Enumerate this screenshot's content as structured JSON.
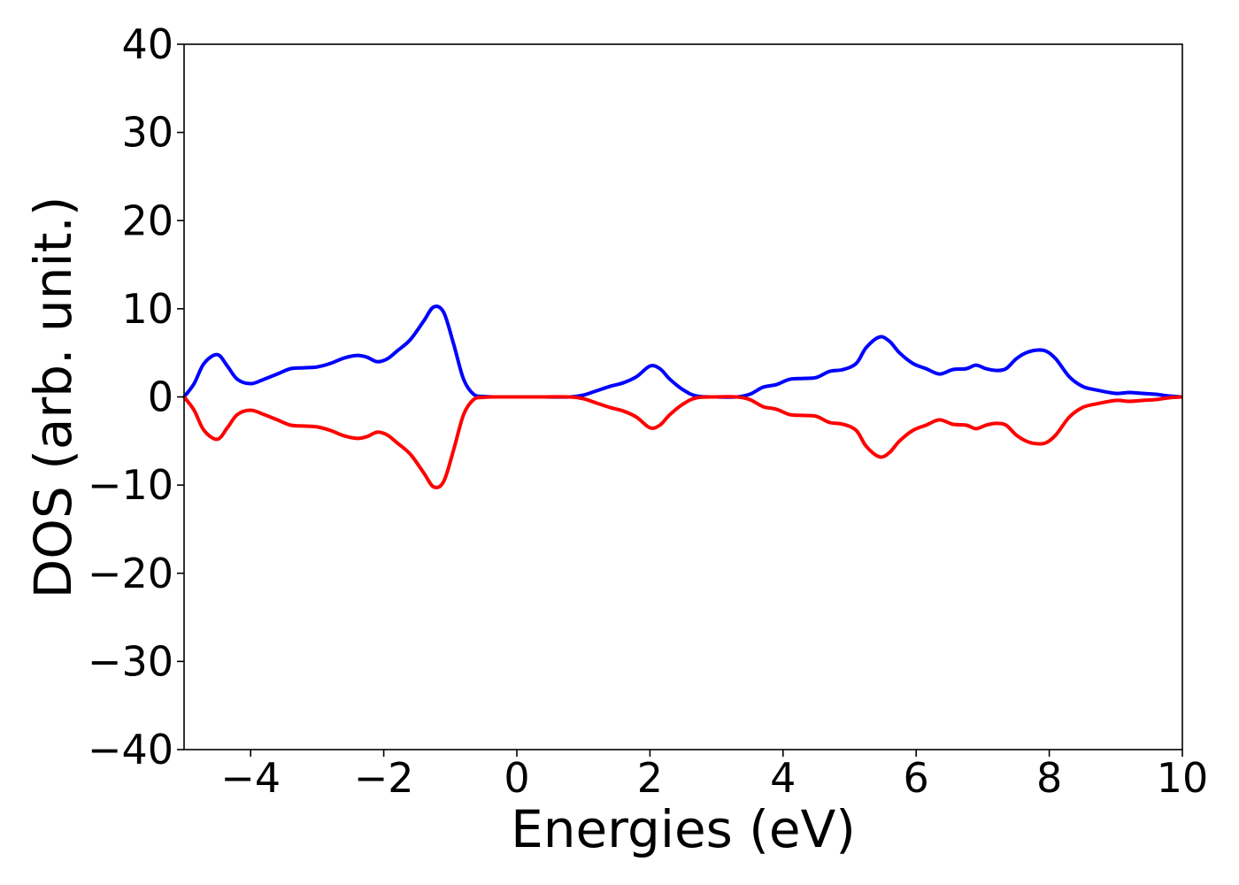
{
  "chart_data": {
    "type": "line",
    "title": "",
    "xlabel": "Energies (eV)",
    "ylabel": "DOS (arb. unit.)",
    "xlim": [
      -5,
      10
    ],
    "ylim": [
      -40,
      40
    ],
    "xticks": [
      -4,
      -2,
      0,
      2,
      4,
      6,
      8,
      10
    ],
    "xtick_labels": [
      "−4",
      "−2",
      "0",
      "2",
      "4",
      "6",
      "8",
      "10"
    ],
    "yticks": [
      -40,
      -30,
      -20,
      -10,
      0,
      10,
      20,
      30,
      40
    ],
    "ytick_labels": [
      "−40",
      "−30",
      "−20",
      "−10",
      "0",
      "10",
      "20",
      "30",
      "40"
    ],
    "grid": false,
    "series": [
      {
        "color": "#0000ff",
        "x": [
          -5.0,
          -4.85,
          -4.7,
          -4.5,
          -4.35,
          -4.2,
          -4.0,
          -3.8,
          -3.6,
          -3.4,
          -3.2,
          -3.0,
          -2.8,
          -2.6,
          -2.4,
          -2.25,
          -2.1,
          -1.95,
          -1.8,
          -1.6,
          -1.4,
          -1.25,
          -1.1,
          -0.95,
          -0.8,
          -0.65,
          -0.5,
          -0.3,
          0.0,
          0.4,
          0.8,
          1.0,
          1.2,
          1.4,
          1.6,
          1.8,
          2.0,
          2.15,
          2.3,
          2.5,
          2.7,
          3.0,
          3.3,
          3.5,
          3.7,
          3.9,
          4.1,
          4.3,
          4.5,
          4.7,
          4.9,
          5.1,
          5.25,
          5.45,
          5.6,
          5.75,
          5.95,
          6.15,
          6.35,
          6.55,
          6.75,
          6.9,
          7.05,
          7.2,
          7.35,
          7.5,
          7.65,
          7.8,
          7.95,
          8.1,
          8.3,
          8.5,
          8.7,
          9.0,
          9.2,
          9.4,
          9.6,
          9.8,
          10.0
        ],
        "values": [
          0.0,
          1.5,
          3.8,
          4.8,
          3.5,
          2.0,
          1.5,
          2.0,
          2.6,
          3.2,
          3.3,
          3.4,
          3.8,
          4.4,
          4.7,
          4.5,
          4.0,
          4.3,
          5.2,
          6.5,
          8.6,
          10.2,
          9.6,
          6.0,
          2.0,
          0.3,
          0.05,
          0.0,
          0.0,
          0.0,
          0.0,
          0.2,
          0.7,
          1.2,
          1.6,
          2.3,
          3.5,
          3.2,
          2.0,
          0.8,
          0.1,
          0.0,
          0.0,
          0.3,
          1.1,
          1.4,
          2.0,
          2.1,
          2.2,
          2.9,
          3.1,
          3.8,
          5.6,
          6.8,
          6.3,
          5.0,
          3.8,
          3.2,
          2.6,
          3.1,
          3.2,
          3.6,
          3.2,
          3.0,
          3.2,
          4.3,
          5.0,
          5.3,
          5.2,
          4.3,
          2.3,
          1.2,
          0.8,
          0.4,
          0.5,
          0.4,
          0.3,
          0.1,
          0.0
        ]
      },
      {
        "color": "#ff0000",
        "x": [
          -5.0,
          -4.85,
          -4.7,
          -4.5,
          -4.35,
          -4.2,
          -4.0,
          -3.8,
          -3.6,
          -3.4,
          -3.2,
          -3.0,
          -2.8,
          -2.6,
          -2.4,
          -2.25,
          -2.1,
          -1.95,
          -1.8,
          -1.6,
          -1.4,
          -1.25,
          -1.1,
          -0.95,
          -0.8,
          -0.65,
          -0.5,
          -0.3,
          0.0,
          0.4,
          0.8,
          1.0,
          1.2,
          1.4,
          1.6,
          1.8,
          2.0,
          2.15,
          2.3,
          2.5,
          2.7,
          3.0,
          3.3,
          3.5,
          3.7,
          3.9,
          4.1,
          4.3,
          4.5,
          4.7,
          4.9,
          5.1,
          5.25,
          5.45,
          5.6,
          5.75,
          5.95,
          6.15,
          6.35,
          6.55,
          6.75,
          6.9,
          7.05,
          7.2,
          7.35,
          7.5,
          7.65,
          7.8,
          7.95,
          8.1,
          8.3,
          8.5,
          8.7,
          9.0,
          9.2,
          9.4,
          9.6,
          9.8,
          10.0
        ],
        "values": [
          0.0,
          -1.5,
          -3.8,
          -4.8,
          -3.5,
          -2.0,
          -1.5,
          -2.0,
          -2.6,
          -3.2,
          -3.3,
          -3.4,
          -3.8,
          -4.4,
          -4.7,
          -4.5,
          -4.0,
          -4.3,
          -5.2,
          -6.5,
          -8.6,
          -10.2,
          -9.6,
          -6.0,
          -2.0,
          -0.3,
          -0.05,
          0.0,
          0.0,
          0.0,
          0.0,
          -0.2,
          -0.7,
          -1.2,
          -1.6,
          -2.3,
          -3.5,
          -3.2,
          -2.0,
          -0.8,
          -0.1,
          0.0,
          0.0,
          -0.3,
          -1.1,
          -1.4,
          -2.0,
          -2.1,
          -2.2,
          -2.9,
          -3.1,
          -3.8,
          -5.6,
          -6.8,
          -6.3,
          -5.0,
          -3.8,
          -3.2,
          -2.6,
          -3.1,
          -3.2,
          -3.6,
          -3.2,
          -3.0,
          -3.2,
          -4.3,
          -5.0,
          -5.3,
          -5.2,
          -4.3,
          -2.3,
          -1.2,
          -0.8,
          -0.4,
          -0.5,
          -0.4,
          -0.3,
          -0.1,
          0.0
        ]
      }
    ]
  }
}
